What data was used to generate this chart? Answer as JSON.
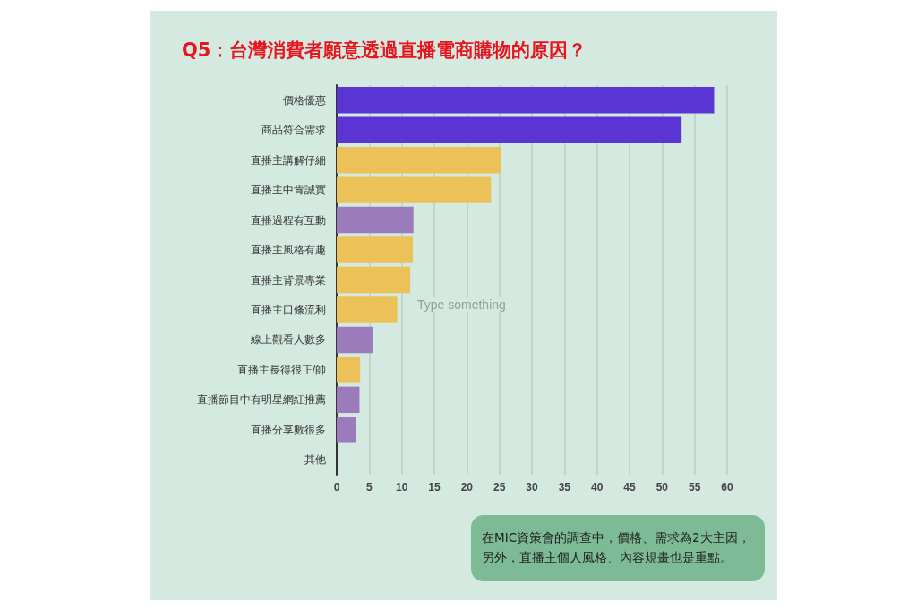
{
  "chart_data": {
    "type": "bar",
    "orientation": "horizontal",
    "title": "Q5：台灣消費者願意透過直播電商購物的原因？",
    "categories": [
      "價格優惠",
      "商品符合需求",
      "直播主講解仔細",
      "直播主中肯誠實",
      "直播過程有互動",
      "直播主風格有趣",
      "直播主背景專業",
      "直播主口條流利",
      "線上觀看人數多",
      "直播主長得很正/帥",
      "直播節目中有明星網紅推薦",
      "直播分享數很多",
      "其他"
    ],
    "values": [
      58,
      53,
      25.2,
      23.7,
      11.8,
      11.7,
      11.3,
      9.3,
      5.5,
      3.6,
      3.5,
      3.0,
      0
    ],
    "colors": [
      "#5a35d4",
      "#5a35d4",
      "#ecc158",
      "#ecc158",
      "#9b7bbb",
      "#ecc158",
      "#ecc158",
      "#ecc158",
      "#9b7bbb",
      "#ecc158",
      "#9b7bbb",
      "#9b7bbb",
      "#9b7bbb"
    ],
    "xlim": [
      0,
      60
    ],
    "xticks": [
      0,
      5,
      10,
      15,
      20,
      25,
      30,
      35,
      40,
      45,
      50,
      55,
      60
    ],
    "grid": "x",
    "annotations": [
      "Type something",
      "在MIC資策會的調查中，價格、需求為2大主因，另外，直播主個人風格、內容規畫也是重點。"
    ]
  }
}
